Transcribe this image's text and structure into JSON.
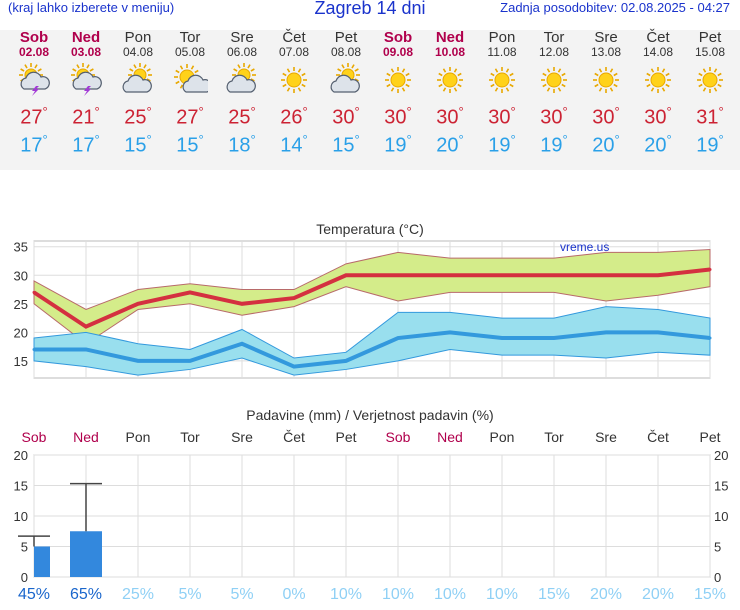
{
  "header": {
    "hint": "(kraj lahko izberete v meniju)",
    "title": "Zagreb 14 dni",
    "updated": "Zadnja posodobitev: 02.08.2025 - 04:27"
  },
  "days": [
    {
      "name": "Sob",
      "date": "02.08",
      "weekend": true,
      "icon": "sun-cloud-storm-icon",
      "max": "27",
      "min": "17"
    },
    {
      "name": "Ned",
      "date": "03.08",
      "weekend": true,
      "icon": "sun-cloud-storm-icon",
      "max": "21",
      "min": "17"
    },
    {
      "name": "Pon",
      "date": "04.08",
      "weekend": false,
      "icon": "sun-cloud-icon",
      "max": "25",
      "min": "15"
    },
    {
      "name": "Tor",
      "date": "05.08",
      "weekend": false,
      "icon": "sun-small-cloud-icon",
      "max": "27",
      "min": "15"
    },
    {
      "name": "Sre",
      "date": "06.08",
      "weekend": false,
      "icon": "sun-cloud-icon",
      "max": "25",
      "min": "18"
    },
    {
      "name": "Čet",
      "date": "07.08",
      "weekend": false,
      "icon": "sun-icon",
      "max": "26",
      "min": "14"
    },
    {
      "name": "Pet",
      "date": "08.08",
      "weekend": false,
      "icon": "sun-cloud-icon",
      "max": "30",
      "min": "15"
    },
    {
      "name": "Sob",
      "date": "09.08",
      "weekend": true,
      "icon": "sun-icon",
      "max": "30",
      "min": "19"
    },
    {
      "name": "Ned",
      "date": "10.08",
      "weekend": true,
      "icon": "sun-icon",
      "max": "30",
      "min": "20"
    },
    {
      "name": "Pon",
      "date": "11.08",
      "weekend": false,
      "icon": "sun-icon",
      "max": "30",
      "min": "19"
    },
    {
      "name": "Tor",
      "date": "12.08",
      "weekend": false,
      "icon": "sun-icon",
      "max": "30",
      "min": "19"
    },
    {
      "name": "Sre",
      "date": "13.08",
      "weekend": false,
      "icon": "sun-icon",
      "max": "30",
      "min": "20"
    },
    {
      "name": "Čet",
      "date": "14.08",
      "weekend": false,
      "icon": "sun-icon",
      "max": "30",
      "min": "20"
    },
    {
      "name": "Pet",
      "date": "15.08",
      "weekend": false,
      "icon": "sun-icon",
      "max": "31",
      "min": "19"
    }
  ],
  "colors": {
    "title": "#1a33cc",
    "weekend": "#b0004c",
    "max_line": "#d43040",
    "max_band": "#d4ec8a",
    "min_line": "#3399dd",
    "min_band": "#99dfee",
    "precip_bar": "#3388dd"
  },
  "chart_data": [
    {
      "type": "line",
      "title": "Temperatura (°C)",
      "watermark": "vreme.us",
      "ylim": [
        12,
        36
      ],
      "yticks": [
        15,
        20,
        25,
        30,
        35
      ],
      "grid": true,
      "series": [
        {
          "values": [
            27,
            21,
            25,
            27,
            25,
            26,
            30,
            30,
            30,
            30,
            30,
            30,
            30,
            31
          ],
          "band_upper": [
            29,
            24,
            27.5,
            28.5,
            27.5,
            27.5,
            32,
            34,
            33,
            33,
            33,
            34,
            34,
            34.5
          ],
          "band_lower": [
            25,
            18,
            24,
            25,
            23,
            24.5,
            28,
            25.5,
            27,
            27,
            27,
            25.5,
            26.5,
            28
          ]
        },
        {
          "values": [
            17,
            17,
            15,
            15,
            18,
            14,
            15,
            19,
            20,
            19,
            19,
            20,
            20,
            19
          ],
          "band_upper": [
            19,
            20,
            18,
            17,
            20.5,
            15.5,
            16.5,
            23.5,
            23.5,
            22.5,
            22.5,
            24.5,
            24,
            22.5
          ],
          "band_lower": [
            15,
            14,
            12.5,
            13.5,
            15.5,
            12.5,
            13.5,
            15,
            17,
            16,
            16,
            15.5,
            16.5,
            16
          ]
        }
      ]
    },
    {
      "type": "bar",
      "title": "Padavine (mm) / Verjetnost padavin (%)",
      "categories": [
        "Sob",
        "Ned",
        "Pon",
        "Tor",
        "Sre",
        "Čet",
        "Pet",
        "Sob",
        "Ned",
        "Pon",
        "Tor",
        "Sre",
        "Čet",
        "Pet"
      ],
      "values": [
        5,
        7.5,
        0,
        0,
        0,
        0,
        0,
        0,
        0,
        0,
        0,
        0,
        0,
        0
      ],
      "error_max": [
        6.7,
        15.3,
        0,
        0,
        0,
        0,
        0,
        0,
        0,
        0,
        0,
        0,
        0,
        0
      ],
      "probability": [
        "45%",
        "65%",
        "25%",
        "5%",
        "5%",
        "0%",
        "10%",
        "10%",
        "10%",
        "10%",
        "15%",
        "20%",
        "20%",
        "15%"
      ],
      "ylim": [
        0,
        20
      ],
      "yticks": [
        0,
        5,
        10,
        15,
        20
      ],
      "grid": true
    }
  ]
}
